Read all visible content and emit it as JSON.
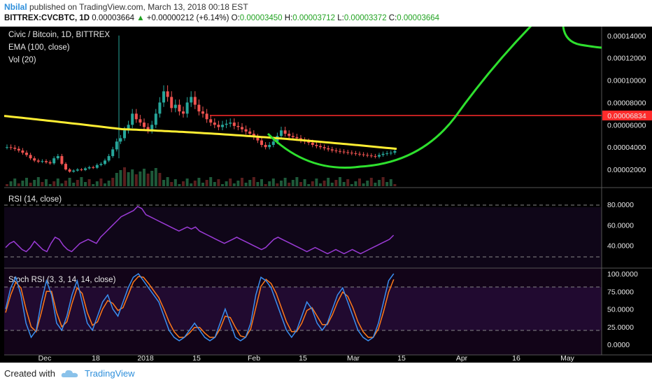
{
  "header": {
    "author": "Nbilal",
    "published": " published on TradingView.com, March 13, 2018 00:18 EST",
    "symbol": "BITTREX:CVCBTC, 1D",
    "last": "0.00003664",
    "change_arrow": "▲",
    "change": "+0.00000212 (+6.14%)",
    "o_label": "O:",
    "o": "0.00003450",
    "h_label": "H:",
    "h": "0.00003712",
    "l_label": "L:",
    "l": "0.00003372",
    "c_label": "C:",
    "c": "0.00003664"
  },
  "panes": {
    "main_title": "Civic / Bitcoin, 1D, BITTREX",
    "ema_label": "EMA (100, close)",
    "vol_label": "Vol (20)",
    "rsi_label": "RSI (14, close)",
    "stoch_label": "Stoch RSI (3, 3, 14, 14, close)",
    "price_ticks": [
      "0.00014000",
      "0.00012000",
      "0.00010000",
      "0.00008000",
      "0.00006000",
      "0.00004000",
      "0.00002000"
    ],
    "resistance_label": "0.00006834",
    "rsi_ticks": [
      "80.0000",
      "60.0000",
      "40.0000"
    ],
    "stoch_ticks": [
      "100.0000",
      "75.0000",
      "50.0000",
      "25.0000",
      "0.0000"
    ],
    "x_ticks": [
      "Dec",
      "18",
      "2018",
      "15",
      "Feb",
      "15",
      "Mar",
      "15",
      "Apr",
      "16",
      "May"
    ]
  },
  "footer": {
    "created_with": "Created with",
    "brand": "TradingView"
  },
  "chart_data": {
    "type": "candlestick",
    "title": "Civic / Bitcoin, 1D, BITTREX",
    "dates_range": [
      "2017-11-15",
      "2018-03-13"
    ],
    "ohlc_close_approx": [
      4e-05,
      3.95e-05,
      3.85e-05,
      3.7e-05,
      3.5e-05,
      3.3e-05,
      3e-05,
      2.8e-05,
      2.7e-05,
      2.75e-05,
      2.65e-05,
      2.55e-05,
      3e-05,
      3.2e-05,
      2.5e-05,
      2e-05,
      1.8e-05,
      1.9e-05,
      2e-05,
      1.95e-05,
      2.1e-05,
      2.2e-05,
      2.15e-05,
      2.4e-05,
      2.5e-05,
      2.8e-05,
      3.2e-05,
      3.8e-05,
      4.5e-05,
      4.8e-05,
      5.5e-05,
      6e-05,
      7e-05,
      6.5e-05,
      6.2e-05,
      5.8e-05,
      5.5e-05,
      6e-05,
      7e-05,
      8e-05,
      9e-05,
      8.5e-05,
      7.5e-05,
      7.8e-05,
      7.2e-05,
      7e-05,
      8e-05,
      8.5e-05,
      7.8e-05,
      7.2e-05,
      7e-05,
      6.5e-05,
      6.2e-05,
      6e-05,
      5.8e-05,
      6e-05,
      6.1e-05,
      6.2e-05,
      5.9e-05,
      5.8e-05,
      5.6e-05,
      5.4e-05,
      5.2e-05,
      4.9e-05,
      4.6e-05,
      4.2e-05,
      4e-05,
      4.2e-05,
      4.5e-05,
      5e-05,
      5.5e-05,
      5.2e-05,
      5e-05,
      4.9e-05,
      4.8e-05,
      4.6e-05,
      4.5e-05,
      4.4e-05,
      4.2e-05,
      4.1e-05,
      4e-05,
      3.9e-05,
      3.8e-05,
      3.7e-05,
      3.65e-05,
      3.6e-05,
      3.55e-05,
      3.5e-05,
      3.45e-05,
      3.4e-05,
      3.35e-05,
      3.3e-05,
      3.25e-05,
      3.2e-05,
      3.15e-05,
      3.3e-05,
      3.4e-05,
      3.45e-05,
      3.5e-05,
      3.66e-05
    ],
    "ema_100_start": 6.8e-05,
    "ema_100_end": 4.75e-05,
    "resistance_line": 6.834e-05,
    "spike_high": 0.00014,
    "ylim": [
      5e-06,
      0.000148
    ],
    "rsi": {
      "ylim": [
        20,
        80
      ],
      "bands": [
        70,
        30
      ],
      "values": [
        38,
        42,
        44,
        40,
        36,
        34,
        38,
        44,
        40,
        36,
        34,
        42,
        48,
        46,
        40,
        36,
        34,
        38,
        42,
        44,
        46,
        44,
        42,
        48,
        52,
        56,
        60,
        64,
        68,
        70,
        72,
        74,
        78,
        76,
        70,
        68,
        66,
        64,
        62,
        60,
        58,
        56,
        54,
        56,
        58,
        56,
        58,
        54,
        52,
        50,
        48,
        46,
        44,
        42,
        44,
        46,
        48,
        46,
        44,
        42,
        40,
        38,
        36,
        38,
        42,
        46,
        48,
        46,
        44,
        42,
        40,
        38,
        36,
        34,
        36,
        38,
        36,
        34,
        32,
        34,
        36,
        34,
        32,
        34,
        36,
        34,
        32,
        34,
        36,
        38,
        40,
        42,
        44,
        46,
        50
      ]
    },
    "stoch_rsi": {
      "ylim": [
        0,
        100
      ],
      "bands": [
        80,
        20
      ],
      "k": [
        50,
        80,
        95,
        70,
        30,
        10,
        20,
        60,
        90,
        70,
        30,
        20,
        40,
        70,
        90,
        60,
        30,
        20,
        40,
        60,
        70,
        50,
        40,
        60,
        80,
        95,
        100,
        90,
        80,
        70,
        60,
        40,
        20,
        10,
        5,
        10,
        20,
        30,
        20,
        10,
        5,
        10,
        30,
        50,
        30,
        10,
        5,
        10,
        30,
        70,
        95,
        90,
        80,
        60,
        40,
        20,
        10,
        20,
        40,
        60,
        50,
        30,
        20,
        30,
        50,
        70,
        80,
        60,
        40,
        20,
        10,
        5,
        10,
        30,
        60,
        90,
        100
      ],
      "d": [
        45,
        70,
        88,
        80,
        50,
        25,
        18,
        45,
        75,
        75,
        45,
        25,
        32,
        58,
        80,
        72,
        45,
        27,
        32,
        50,
        62,
        58,
        48,
        52,
        70,
        88,
        96,
        95,
        86,
        76,
        66,
        50,
        32,
        18,
        10,
        10,
        16,
        24,
        24,
        16,
        10,
        10,
        22,
        40,
        38,
        24,
        12,
        10,
        22,
        52,
        82,
        92,
        86,
        72,
        52,
        32,
        18,
        18,
        30,
        48,
        52,
        40,
        28,
        28,
        42,
        60,
        74,
        68,
        52,
        32,
        18,
        10,
        10,
        22,
        46,
        74,
        92
      ]
    }
  }
}
